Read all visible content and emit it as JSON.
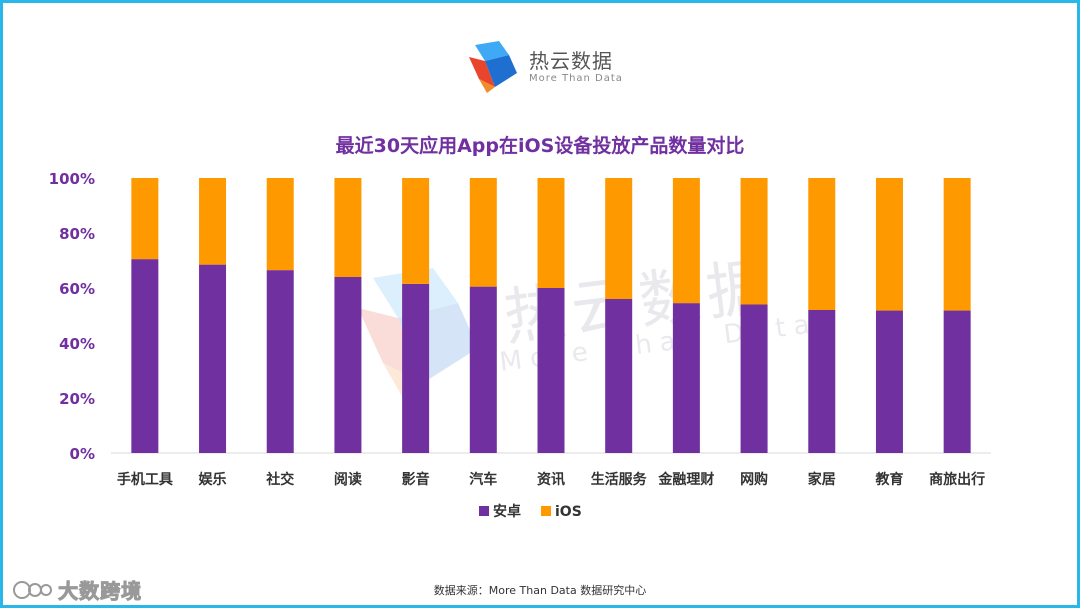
{
  "brand": {
    "name": "热云数据",
    "tagline": "More Than Data"
  },
  "watermark": {
    "name": "热云数据",
    "tagline": "More Than Data"
  },
  "colors": {
    "android": "#7030a0",
    "ios": "#ff9900",
    "frame": "#29b6e8",
    "title": "#7030a0",
    "tick": "#7030a0"
  },
  "chart_data": {
    "type": "bar",
    "stacked": true,
    "title": "最近30天应用App在iOS设备投放产品数量对比",
    "categories": [
      "手机工具",
      "娱乐",
      "社交",
      "阅读",
      "影音",
      "汽车",
      "资讯",
      "生活服务",
      "金融理财",
      "网购",
      "家居",
      "教育",
      "商旅出行"
    ],
    "series": [
      {
        "name": "安卓",
        "color": "#7030a0",
        "values": [
          70.5,
          68.5,
          66.5,
          64,
          61.5,
          60.5,
          60,
          56,
          54.5,
          54,
          52,
          51.8,
          51.8
        ]
      },
      {
        "name": "iOS",
        "color": "#ff9900",
        "values": [
          29.5,
          31.5,
          33.5,
          36,
          38.5,
          39.5,
          40,
          44,
          45.5,
          46,
          48,
          48.2,
          48.2
        ]
      }
    ],
    "ylim": [
      0,
      100
    ],
    "yticks": [
      "0%",
      "20%",
      "40%",
      "60%",
      "80%",
      "100%"
    ],
    "xlabel": "",
    "ylabel": "",
    "grid": false,
    "legend_position": "bottom"
  },
  "footer": {
    "source": "数据来源：More Than Data 数据研究中心",
    "corner_logo": "大数跨境"
  }
}
